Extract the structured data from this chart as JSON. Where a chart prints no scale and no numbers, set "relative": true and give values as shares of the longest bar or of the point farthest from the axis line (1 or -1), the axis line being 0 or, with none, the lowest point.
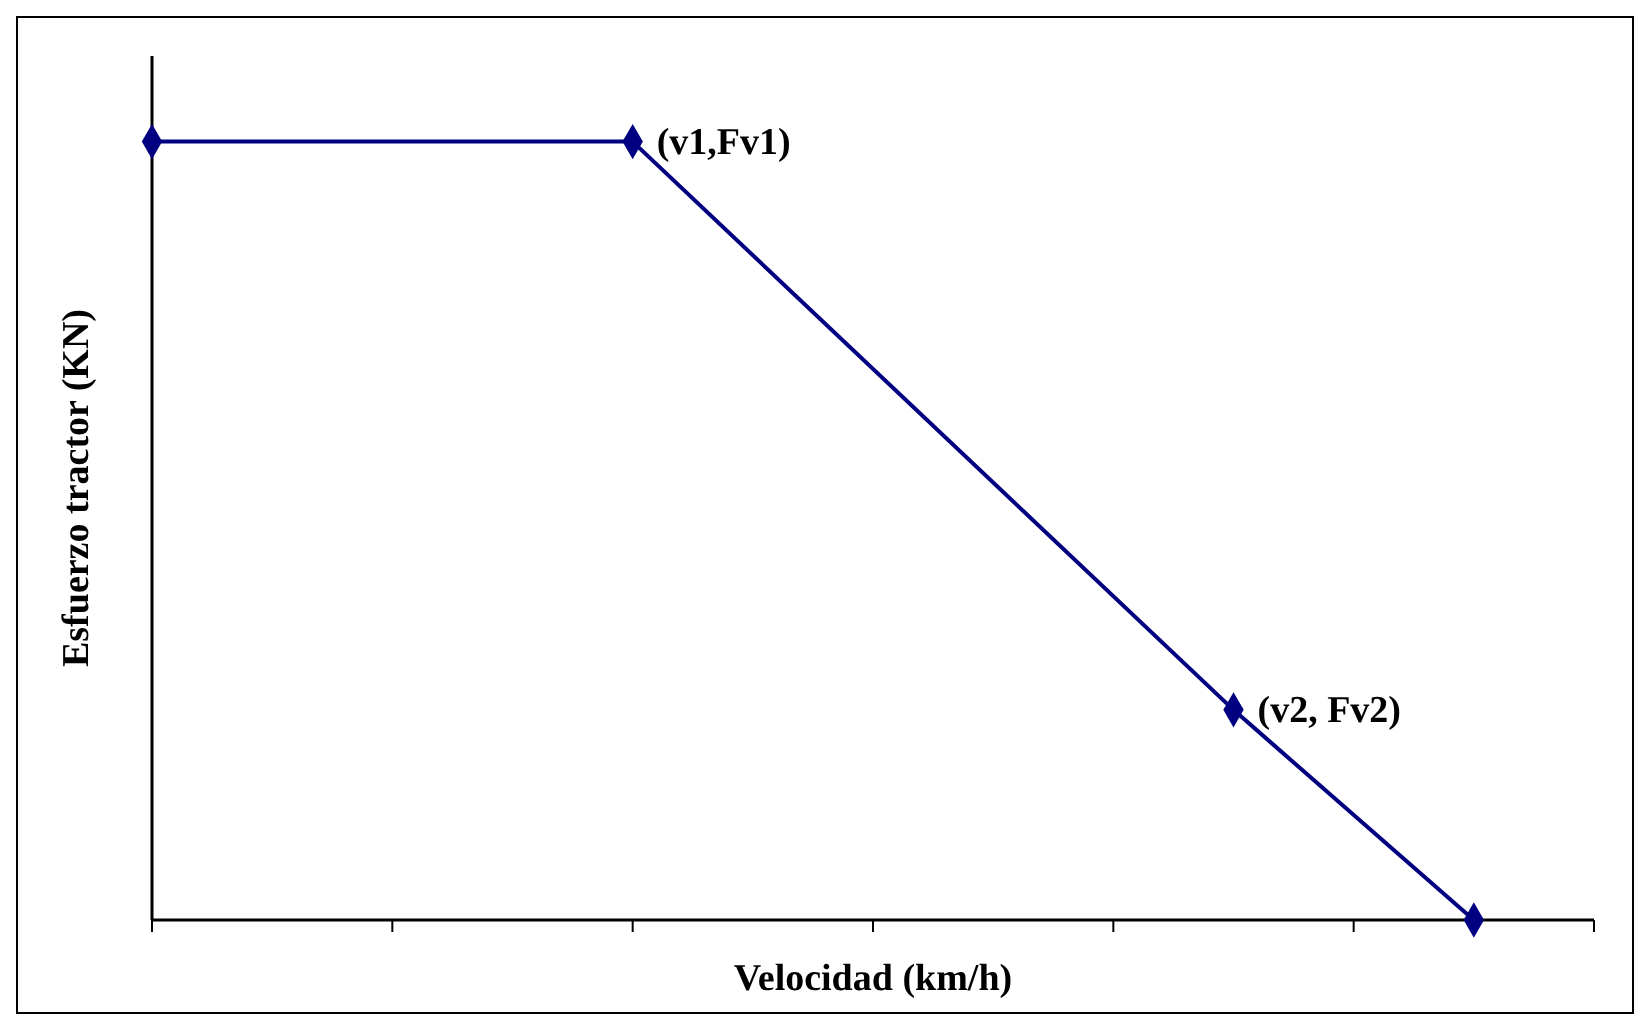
{
  "chart_data": {
    "type": "line",
    "xlabel": "Velocidad (km/h)",
    "ylabel": "Esfuerzo tractor (KN)",
    "relative": true,
    "categories": [
      null,
      null,
      null,
      null,
      null,
      null,
      null,
      null,
      null,
      null,
      null,
      null,
      null
    ],
    "series": [
      {
        "color": "#000080",
        "values": [
          1,
          null,
          null,
          null,
          1,
          null,
          null,
          null,
          null,
          0.27,
          null,
          0,
          null
        ]
      }
    ],
    "marker": "diamond",
    "line_style": "solid",
    "grid": false,
    "annotations": [
      "(v1,Fv1)",
      "(v2, Fv2)"
    ]
  }
}
